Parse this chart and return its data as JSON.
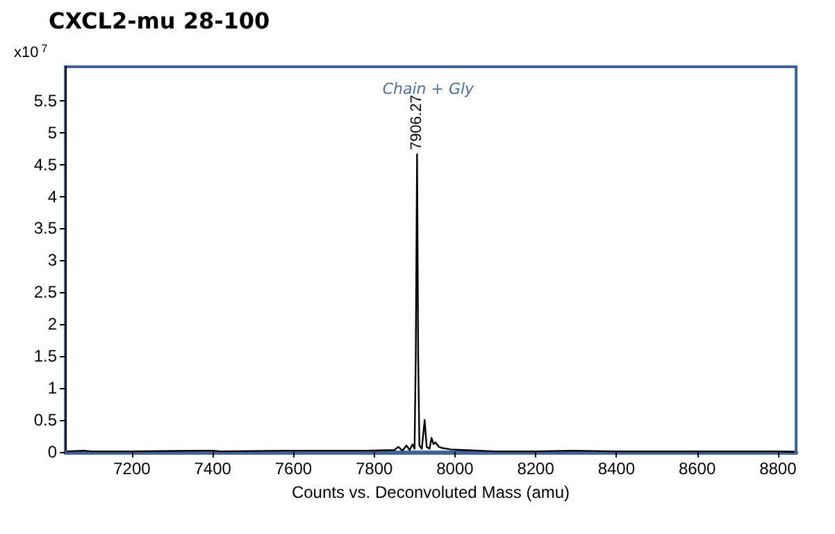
{
  "chart_data": {
    "type": "line",
    "title": "CXCL2-mu 28-100",
    "xlabel": "Counts vs. Deconvoluted Mass (amu)",
    "ylabel": "x10$^{7}$",
    "annotations": [
      {
        "text": "7906.27",
        "x": 7906.27,
        "y": 4.66
      },
      "Chain + Gly"
    ],
    "x": [
      7040,
      7080,
      7100,
      7200,
      7380,
      7400,
      7420,
      7580,
      7680,
      7780,
      7850,
      7860,
      7870,
      7880,
      7888,
      7895,
      7900,
      7903,
      7906.27,
      7909,
      7912,
      7918,
      7925,
      7930,
      7937,
      7942,
      7947,
      7952,
      7960,
      7970,
      7990,
      8020,
      8060,
      8100,
      8200,
      8290,
      8400,
      8600,
      8800,
      8840
    ],
    "series": [
      {
        "color": "#000000",
        "values": [
          0.01,
          0.02,
          0.01,
          0.01,
          0.02,
          0.02,
          0.01,
          0.02,
          0.02,
          0.02,
          0.03,
          0.08,
          0.02,
          0.1,
          0.03,
          0.12,
          0.05,
          1.5,
          4.66,
          1.5,
          0.1,
          0.05,
          0.5,
          0.08,
          0.05,
          0.22,
          0.12,
          0.15,
          0.08,
          0.06,
          0.04,
          0.03,
          0.02,
          0.01,
          0.01,
          0.02,
          0.01,
          0.01,
          0.01,
          0
        ]
      }
    ],
    "xlim": [
      7035,
      8845
    ],
    "ylim": [
      0,
      6.03
    ],
    "xticks": [
      7200,
      7400,
      7600,
      7800,
      8000,
      8200,
      8400,
      8600,
      8800
    ],
    "yticks": [
      0,
      0.5,
      1,
      1.5,
      2,
      2.5,
      3,
      3.5,
      4,
      4.5,
      5,
      5.5
    ],
    "grid": false,
    "marker": "none",
    "line_style": "solid"
  }
}
